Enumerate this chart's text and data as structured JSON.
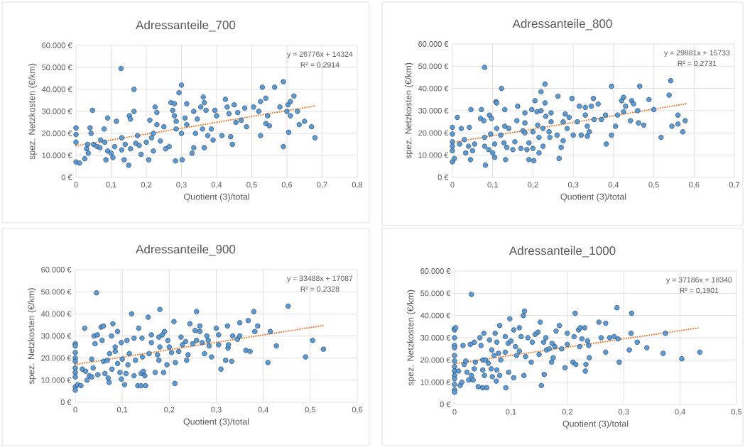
{
  "chart_data": [
    {
      "type": "scatter",
      "title": "Adressanteile_700",
      "xlabel": "Quotient (3)/total",
      "ylabel": "spez. Netzkosten (€/km)",
      "annotations": [
        "y = 26776x + 14324",
        "R² = 0,2914"
      ],
      "xlim": [
        0,
        0.8
      ],
      "ylim": [
        0,
        60000
      ],
      "xticks": [
        0,
        {
          "value": 0.1,
          "label": "0,1"
        },
        {
          "value": 0.2,
          "label": "0,2"
        },
        {
          "value": 0.3,
          "label": "0,3"
        },
        {
          "value": 0.4,
          "label": "0,4"
        },
        {
          "value": 0.5,
          "label": "0,5"
        },
        {
          "value": 0.6,
          "label": "0,6"
        },
        {
          "value": 0.7,
          "label": "0,7"
        },
        {
          "value": 0.8,
          "label": "0,8"
        }
      ],
      "yticks": [
        {
          "value": 0,
          "label": "0 €"
        },
        {
          "value": 10000,
          "label": "10.000 €"
        },
        {
          "value": 20000,
          "label": "20.000 €"
        },
        {
          "value": 30000,
          "label": "30.000 €"
        },
        {
          "value": 40000,
          "label": "40.000 €"
        },
        {
          "value": 50000,
          "label": "50.000 €"
        },
        {
          "value": 60000,
          "label": "60.000 €"
        }
      ],
      "grid": true,
      "series": [
        {
          "type": "scatter",
          "color": "#5b9bd5",
          "marker": "circle",
          "x": [
            0,
            0,
            0,
            0,
            0.01,
            0.025,
            0.03,
            0.033,
            0.035,
            0.04,
            0.043,
            0.047,
            0.05,
            0.06,
            0.07,
            0.068,
            0.08,
            0.082,
            0.085,
            0.09,
            0.09,
            0.1,
            0.105,
            0.11,
            0.115,
            0.128,
            0.13,
            0.13,
            0.137,
            0.14,
            0.15,
            0.152,
            0.155,
            0.155,
            0.165,
            0.165,
            0.17,
            0.175,
            0.18,
            0.185,
            0.2,
            0.207,
            0.21,
            0.215,
            0.22,
            0.22,
            0.225,
            0.23,
            0.23,
            0.24,
            0.25,
            0.255,
            0.265,
            0.27,
            0.275,
            0.28,
            0.28,
            0.285,
            0.285,
            0.283,
            0.293,
            0.3,
            0.3,
            0.302,
            0.31,
            0.315,
            0.315,
            0.33,
            0.335,
            0.335,
            0.34,
            0.345,
            0.355,
            0.36,
            0.362,
            0.365,
            0.365,
            0.37,
            0.375,
            0.385,
            0.39,
            0.395,
            0.4,
            0.415,
            0.425,
            0.43,
            0.435,
            0.44,
            0.445,
            0.45,
            0.455,
            0.46,
            0.47,
            0.48,
            0.485,
            0.505,
            0.52,
            0.525,
            0.525,
            0.53,
            0.54,
            0.54,
            0.55,
            0.545,
            0.565,
            0.58,
            0.59,
            0.59,
            0.6,
            0.603,
            0.605,
            0.61,
            0.61,
            0.62,
            0.63,
            0.635,
            0.65,
            0.67,
            0.68
          ],
          "values": [
            22500,
            19500,
            16000,
            7000,
            6500,
            8500,
            13000,
            15000,
            11000,
            22500,
            20000,
            30500,
            15000,
            14000,
            17000,
            13500,
            22000,
            16000,
            8000,
            27000,
            12000,
            11000,
            9000,
            14000,
            25500,
            49500,
            18000,
            12500,
            8000,
            15000,
            5500,
            28000,
            26500,
            13000,
            40000,
            30000,
            15500,
            19000,
            14500,
            10500,
            16000,
            8000,
            26000,
            18000,
            20000,
            12000,
            32000,
            29500,
            24000,
            16500,
            23000,
            13000,
            14000,
            34000,
            30500,
            33500,
            28000,
            25500,
            22000,
            7500,
            38500,
            42000,
            20000,
            8000,
            27000,
            33500,
            24000,
            11000,
            30000,
            13500,
            20000,
            26500,
            32000,
            22000,
            36500,
            34000,
            13500,
            30500,
            19000,
            22000,
            17000,
            30500,
            28000,
            19000,
            35500,
            32000,
            29000,
            18500,
            15000,
            33000,
            25000,
            29500,
            26000,
            31500,
            23000,
            32000,
            30000,
            19000,
            34500,
            41000,
            36000,
            24500,
            23500,
            28000,
            41000,
            32000,
            43500,
            14000,
            30000,
            33000,
            20500,
            28000,
            34500,
            37000,
            30000,
            24000,
            25500,
            23000,
            18000
          ]
        },
        {
          "type": "line",
          "color": "#ed7d31",
          "line_style": "dotted",
          "marker": "none",
          "x": [
            0,
            0.68
          ],
          "values": [
            14300,
            32500
          ]
        }
      ]
    },
    {
      "type": "scatter",
      "title": "Adressanteile_800",
      "xlabel": "Quotient (3)/total",
      "ylabel": "spez. Netzkosten (€/km)",
      "annotations": [
        "y = 29881x + 15733",
        "R² = 0,2731"
      ],
      "xlim": [
        0,
        0.7
      ],
      "ylim": [
        0,
        60000
      ],
      "xticks": [
        0,
        {
          "value": 0.1,
          "label": "0,1"
        },
        {
          "value": 0.2,
          "label": "0,2"
        },
        {
          "value": 0.3,
          "label": "0,3"
        },
        {
          "value": 0.4,
          "label": "0,4"
        },
        {
          "value": 0.5,
          "label": "0,5"
        },
        {
          "value": 0.6,
          "label": "0,6"
        },
        {
          "value": 0.7,
          "label": "0,7"
        }
      ],
      "yticks": [
        {
          "value": 0,
          "label": "0 €"
        },
        {
          "value": 10000,
          "label": "10.000 €"
        },
        {
          "value": 20000,
          "label": "20.000 €"
        },
        {
          "value": 30000,
          "label": "30.000 €"
        },
        {
          "value": 40000,
          "label": "40.000 €"
        },
        {
          "value": 50000,
          "label": "50.000 €"
        },
        {
          "value": 60000,
          "label": "60.000 €"
        }
      ],
      "grid": true,
      "series": [
        {
          "type": "scatter",
          "color": "#5b9bd5",
          "marker": "circle",
          "x": [
            0,
            0,
            0,
            0,
            0,
            0,
            0.005,
            0.012,
            0.018,
            0.022,
            0.03,
            0.033,
            0.04,
            0.042,
            0.045,
            0.046,
            0.05,
            0.055,
            0.07,
            0.072,
            0.078,
            0.08,
            0.08,
            0.082,
            0.08,
            0.09,
            0.092,
            0.097,
            0.095,
            0.1,
            0.105,
            0.105,
            0.108,
            0.11,
            0.11,
            0.12,
            0.122,
            0.128,
            0.13,
            0.13,
            0.132,
            0.135,
            0.14,
            0.15,
            0.155,
            0.16,
            0.162,
            0.17,
            0.175,
            0.18,
            0.18,
            0.18,
            0.185,
            0.19,
            0.19,
            0.197,
            0.2,
            0.2,
            0.202,
            0.205,
            0.21,
            0.212,
            0.215,
            0.215,
            0.22,
            0.22,
            0.225,
            0.225,
            0.23,
            0.23,
            0.232,
            0.24,
            0.242,
            0.245,
            0.245,
            0.26,
            0.262,
            0.265,
            0.27,
            0.275,
            0.275,
            0.28,
            0.285,
            0.29,
            0.297,
            0.3,
            0.31,
            0.315,
            0.32,
            0.33,
            0.33,
            0.335,
            0.335,
            0.34,
            0.345,
            0.35,
            0.352,
            0.362,
            0.37,
            0.38,
            0.382,
            0.395,
            0.395,
            0.405,
            0.41,
            0.42,
            0.425,
            0.425,
            0.43,
            0.442,
            0.445,
            0.45,
            0.46,
            0.462,
            0.465,
            0.475,
            0.488,
            0.5,
            0.518,
            0.538,
            0.542,
            0.545,
            0.56,
            0.56,
            0.572,
            0.578
          ],
          "values": [
            22500,
            19500,
            16000,
            14000,
            12000,
            7000,
            8500,
            27000,
            15000,
            22000,
            17000,
            11000,
            14000,
            22500,
            8000,
            30500,
            12000,
            15000,
            26500,
            30500,
            25500,
            18000,
            14000,
            5500,
            49500,
            12500,
            28000,
            26500,
            19500,
            11000,
            9000,
            15000,
            34000,
            33500,
            22000,
            19000,
            40000,
            15500,
            30500,
            23000,
            8000,
            13500,
            22000,
            12500,
            16000,
            25500,
            32000,
            13000,
            21000,
            29000,
            24500,
            20000,
            12500,
            15500,
            8000,
            30500,
            20500,
            13000,
            7500,
            34500,
            29500,
            23500,
            18000,
            11000,
            38500,
            30000,
            22000,
            14000,
            42000,
            33500,
            27500,
            20500,
            18000,
            29000,
            25000,
            19000,
            36500,
            8500,
            13500,
            25000,
            16500,
            28500,
            22000,
            27000,
            35500,
            19000,
            25000,
            32000,
            19000,
            31500,
            28000,
            23000,
            18500,
            20500,
            32000,
            35500,
            26000,
            33000,
            26000,
            28000,
            15000,
            41000,
            19000,
            23000,
            28000,
            34500,
            36000,
            29500,
            32000,
            25500,
            34500,
            33000,
            30000,
            24500,
            41000,
            23500,
            35000,
            30500,
            18000,
            37000,
            43500,
            23000,
            28000,
            24000,
            20500,
            25500
          ]
        },
        {
          "type": "line",
          "color": "#ed7d31",
          "line_style": "dotted",
          "marker": "none",
          "x": [
            0,
            0.58
          ],
          "values": [
            15700,
            33100
          ]
        }
      ]
    },
    {
      "type": "scatter",
      "title": "Adressanteile_900",
      "xlabel": "Quotient (3)/total",
      "ylabel": "spez. Netzkosten (€/km)",
      "annotations": [
        "y = 33488x + 17087",
        "R² = 0,2328"
      ],
      "xlim": [
        0,
        0.6
      ],
      "ylim": [
        0,
        60000
      ],
      "xticks": [
        0,
        {
          "value": 0.1,
          "label": "0,1"
        },
        {
          "value": 0.2,
          "label": "0,2"
        },
        {
          "value": 0.3,
          "label": "0,3"
        },
        {
          "value": 0.4,
          "label": "0,4"
        },
        {
          "value": 0.5,
          "label": "0,5"
        },
        {
          "value": 0.6,
          "label": "0,6"
        }
      ],
      "yticks": [
        {
          "value": 0,
          "label": "0 €"
        },
        {
          "value": 10000,
          "label": "10.000 €"
        },
        {
          "value": 20000,
          "label": "20.000 €"
        },
        {
          "value": 30000,
          "label": "30.000 €"
        },
        {
          "value": 40000,
          "label": "40.000 €"
        },
        {
          "value": 50000,
          "label": "50.000 €"
        },
        {
          "value": 60000,
          "label": "60.000 €"
        }
      ],
      "grid": true,
      "series": [
        {
          "type": "scatter",
          "color": "#5b9bd5",
          "marker": "circle",
          "x": [
            0,
            0,
            0,
            0,
            0,
            0,
            0,
            0,
            0,
            0,
            0.005,
            0.012,
            0.015,
            0.02,
            0.022,
            0.025,
            0.03,
            0.035,
            0.035,
            0.038,
            0.04,
            0.042,
            0.045,
            0.047,
            0.048,
            0.055,
            0.057,
            0.06,
            0.06,
            0.063,
            0.068,
            0.07,
            0.072,
            0.073,
            0.077,
            0.078,
            0.08,
            0.085,
            0.085,
            0.09,
            0.09,
            0.095,
            0.098,
            0.098,
            0.1,
            0.105,
            0.108,
            0.11,
            0.112,
            0.115,
            0.12,
            0.125,
            0.125,
            0.128,
            0.133,
            0.135,
            0.14,
            0.14,
            0.142,
            0.143,
            0.145,
            0.148,
            0.15,
            0.155,
            0.157,
            0.162,
            0.162,
            0.17,
            0.175,
            0.178,
            0.178,
            0.18,
            0.18,
            0.185,
            0.188,
            0.19,
            0.195,
            0.197,
            0.2,
            0.205,
            0.21,
            0.212,
            0.213,
            0.22,
            0.225,
            0.228,
            0.235,
            0.237,
            0.24,
            0.244,
            0.25,
            0.255,
            0.258,
            0.258,
            0.265,
            0.265,
            0.27,
            0.275,
            0.28,
            0.283,
            0.285,
            0.29,
            0.3,
            0.305,
            0.305,
            0.31,
            0.32,
            0.324,
            0.325,
            0.326,
            0.333,
            0.335,
            0.345,
            0.35,
            0.35,
            0.363,
            0.368,
            0.372,
            0.38,
            0.382,
            0.388,
            0.41,
            0.415,
            0.428,
            0.453,
            0.49,
            0.505,
            0.528
          ],
          "values": [
            26500,
            25500,
            22500,
            20000,
            18500,
            15500,
            13500,
            11500,
            7000,
            5500,
            8000,
            7500,
            15000,
            33500,
            14000,
            10000,
            12000,
            19500,
            11500,
            15500,
            30000,
            26500,
            49500,
            30500,
            12500,
            34000,
            28000,
            34500,
            18500,
            13000,
            19000,
            11000,
            9000,
            22000,
            30000,
            15000,
            35500,
            25000,
            23000,
            32000,
            17500,
            13500,
            27000,
            10500,
            19500,
            8000,
            13000,
            28000,
            17000,
            22000,
            40000,
            29000,
            12000,
            19000,
            7500,
            33500,
            13000,
            7500,
            29000,
            20500,
            14000,
            12000,
            7500,
            38500,
            22000,
            30500,
            27000,
            13500,
            21500,
            19000,
            29500,
            42000,
            25000,
            30500,
            13500,
            32000,
            17000,
            28000,
            25000,
            22500,
            36500,
            8500,
            18000,
            23000,
            29500,
            26000,
            27500,
            19000,
            21500,
            35500,
            26500,
            32500,
            41000,
            28000,
            34500,
            32000,
            27000,
            22000,
            30000,
            28000,
            25500,
            20500,
            33500,
            30500,
            26000,
            15000,
            19000,
            34500,
            24500,
            26000,
            18500,
            30000,
            28500,
            36000,
            30000,
            23500,
            37000,
            23000,
            41000,
            32000,
            34500,
            18000,
            32000,
            25500,
            43500,
            20500,
            28000,
            24000
          ]
        },
        {
          "type": "line",
          "color": "#ed7d31",
          "line_style": "dotted",
          "marker": "none",
          "x": [
            0,
            0.53
          ],
          "values": [
            17100,
            34800
          ]
        }
      ]
    },
    {
      "type": "scatter",
      "title": "Adressanteile_1000",
      "xlabel": "Quotient (3)/total",
      "ylabel": "spez. Netzkosten (€/km)",
      "annotations": [
        "y = 37186x + 18340",
        "R² = 0,1901"
      ],
      "xlim": [
        0,
        0.5
      ],
      "ylim": [
        0,
        60000
      ],
      "xticks": [
        0,
        {
          "value": 0.1,
          "label": "0,1"
        },
        {
          "value": 0.2,
          "label": "0,2"
        },
        {
          "value": 0.3,
          "label": "0,3"
        },
        {
          "value": 0.4,
          "label": "0,4"
        },
        {
          "value": 0.5,
          "label": "0,5"
        }
      ],
      "yticks": [
        {
          "value": 0,
          "label": "0 €"
        },
        {
          "value": 10000,
          "label": "10.000 €"
        },
        {
          "value": 20000,
          "label": "20.000 €"
        },
        {
          "value": 30000,
          "label": "30.000 €"
        },
        {
          "value": 40000,
          "label": "40.000 €"
        },
        {
          "value": 50000,
          "label": "50.000 €"
        },
        {
          "value": 60000,
          "label": "60.000 €"
        }
      ],
      "grid": true,
      "series": [
        {
          "type": "scatter",
          "color": "#5b9bd5",
          "marker": "circle",
          "x": [
            0,
            0,
            0,
            0,
            0,
            0,
            0,
            0,
            0,
            0,
            0,
            0,
            0,
            0,
            0.002,
            0.007,
            0.01,
            0.013,
            0.015,
            0.017,
            0.02,
            0.022,
            0.025,
            0.028,
            0.03,
            0.03,
            0.033,
            0.035,
            0.035,
            0.037,
            0.042,
            0.045,
            0.047,
            0.05,
            0.05,
            0.05,
            0.052,
            0.053,
            0.055,
            0.057,
            0.06,
            0.062,
            0.065,
            0.066,
            0.067,
            0.07,
            0.072,
            0.074,
            0.075,
            0.075,
            0.078,
            0.08,
            0.08,
            0.082,
            0.09,
            0.09,
            0.091,
            0.095,
            0.096,
            0.098,
            0.1,
            0.105,
            0.105,
            0.108,
            0.11,
            0.115,
            0.115,
            0.118,
            0.122,
            0.123,
            0.124,
            0.126,
            0.13,
            0.136,
            0.138,
            0.143,
            0.148,
            0.15,
            0.152,
            0.154,
            0.158,
            0.159,
            0.162,
            0.163,
            0.168,
            0.172,
            0.173,
            0.175,
            0.178,
            0.18,
            0.186,
            0.19,
            0.196,
            0.2,
            0.2,
            0.21,
            0.212,
            0.214,
            0.215,
            0.22,
            0.222,
            0.223,
            0.226,
            0.231,
            0.232,
            0.233,
            0.236,
            0.238,
            0.239,
            0.256,
            0.26,
            0.268,
            0.268,
            0.275,
            0.283,
            0.288,
            0.29,
            0.292,
            0.31,
            0.313,
            0.314,
            0.324,
            0.341,
            0.37,
            0.374,
            0.403,
            0.435
          ],
          "values": [
            34000,
            33500,
            30000,
            26500,
            25500,
            22000,
            19500,
            17000,
            15000,
            13000,
            11500,
            9000,
            6500,
            5500,
            34500,
            15000,
            8500,
            10000,
            26500,
            18000,
            19500,
            14500,
            11000,
            27000,
            49500,
            13000,
            11000,
            28000,
            16000,
            19000,
            8000,
            30000,
            26500,
            7500,
            20000,
            15500,
            32000,
            13000,
            20000,
            7500,
            18500,
            29000,
            16000,
            24500,
            12500,
            22000,
            32000,
            10500,
            28000,
            15500,
            23000,
            35500,
            13000,
            20000,
            30500,
            23500,
            7500,
            27500,
            14500,
            38500,
            28500,
            33500,
            12000,
            26000,
            22000,
            34500,
            24000,
            30500,
            40000,
            13000,
            42000,
            21500,
            30000,
            19000,
            28000,
            31500,
            32500,
            22500,
            37000,
            8500,
            28000,
            13500,
            30000,
            24500,
            25000,
            19000,
            27500,
            21000,
            26000,
            33000,
            35500,
            25000,
            16500,
            32000,
            27000,
            19000,
            30500,
            41000,
            18000,
            33500,
            26000,
            34500,
            29500,
            34500,
            15000,
            18000,
            28500,
            26500,
            21000,
            37000,
            30000,
            36500,
            23500,
            30000,
            30500,
            43500,
            29500,
            19000,
            24500,
            32000,
            41000,
            28000,
            25500,
            23000,
            32000,
            20500,
            23500
          ]
        },
        {
          "type": "line",
          "color": "#ed7d31",
          "line_style": "dotted",
          "marker": "none",
          "x": [
            0,
            0.435
          ],
          "values": [
            18300,
            34500
          ]
        }
      ]
    }
  ]
}
